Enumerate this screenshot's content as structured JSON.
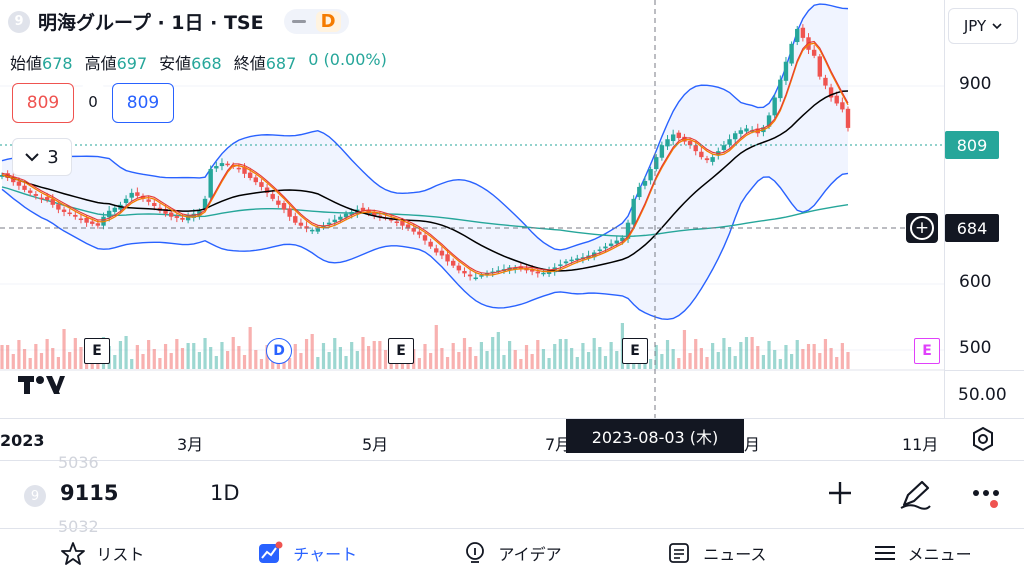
{
  "header": {
    "badge": "9",
    "title": "明海グループ · 1日 · TSE",
    "pill_letter": "D"
  },
  "ohlc": [
    {
      "label": "始値",
      "value": "678"
    },
    {
      "label": "高値",
      "value": "697"
    },
    {
      "label": "安値",
      "value": "668"
    },
    {
      "label": "終値",
      "value": "687"
    }
  ],
  "change": "0 (0.00%)",
  "trade": {
    "sell": "809",
    "spread": "0",
    "buy": "809"
  },
  "indicator_count": "3",
  "currency": "JPY",
  "price_axis": [
    "900",
    "600",
    "500"
  ],
  "volume_axis": "50.00",
  "last_price_tag": "809",
  "crosshair_price": "684",
  "crosshair_date": "2023-08-03 (木)",
  "time_axis": [
    "2023",
    "3月",
    "5月",
    "7月",
    "月",
    "11月"
  ],
  "events": [
    "E",
    "D",
    "E",
    "E",
    "E"
  ],
  "watchlist": {
    "badge": "9",
    "code": "9115",
    "interval": "1D",
    "ghost_top": "5036",
    "ghost_bottom": "5032"
  },
  "nav": [
    {
      "icon": "star-icon",
      "label": "リスト"
    },
    {
      "icon": "chart-icon",
      "label": "チャート"
    },
    {
      "icon": "idea-icon",
      "label": "アイデア"
    },
    {
      "icon": "news-icon",
      "label": "ニュース"
    },
    {
      "icon": "menu-icon",
      "label": "メニュー"
    }
  ],
  "colors": {
    "up": "#26a69a",
    "down": "#ef5350",
    "bollinger": "#2962ff",
    "ma_long": "#26a69a",
    "ma_mid": "#000000",
    "ma_short": "#f57c00",
    "accent": "#2962ff"
  },
  "chart_data": {
    "type": "candlestick",
    "interval": "1D",
    "price_range": [
      470,
      990
    ],
    "price_series": [
      730,
      725,
      718,
      712,
      705,
      700,
      695,
      690,
      688,
      680,
      672,
      668,
      665,
      660,
      655,
      650,
      648,
      645,
      660,
      670,
      675,
      680,
      690,
      700,
      695,
      690,
      685,
      678,
      670,
      665,
      660,
      658,
      655,
      660,
      665,
      670,
      690,
      740,
      745,
      750,
      748,
      745,
      740,
      732,
      725,
      718,
      710,
      700,
      690,
      680,
      672,
      660,
      650,
      645,
      640,
      638,
      640,
      645,
      650,
      655,
      660,
      665,
      668,
      672,
      670,
      666,
      662,
      660,
      658,
      655,
      650,
      645,
      640,
      635,
      630,
      620,
      610,
      600,
      595,
      585,
      578,
      570,
      565,
      560,
      558,
      562,
      565,
      568,
      570,
      572,
      575,
      574,
      572,
      570,
      568,
      565,
      566,
      570,
      575,
      580,
      585,
      588,
      590,
      592,
      595,
      600,
      605,
      610,
      615,
      620,
      625,
      650,
      690,
      710,
      720,
      740,
      760,
      780,
      790,
      798,
      792,
      786,
      780,
      770,
      760,
      755,
      760,
      770,
      780,
      790,
      800,
      805,
      808,
      805,
      800,
      810,
      830,
      860,
      890,
      920,
      950,
      975,
      960,
      940,
      930,
      895,
      880,
      860,
      850,
      840,
      809
    ]
  }
}
